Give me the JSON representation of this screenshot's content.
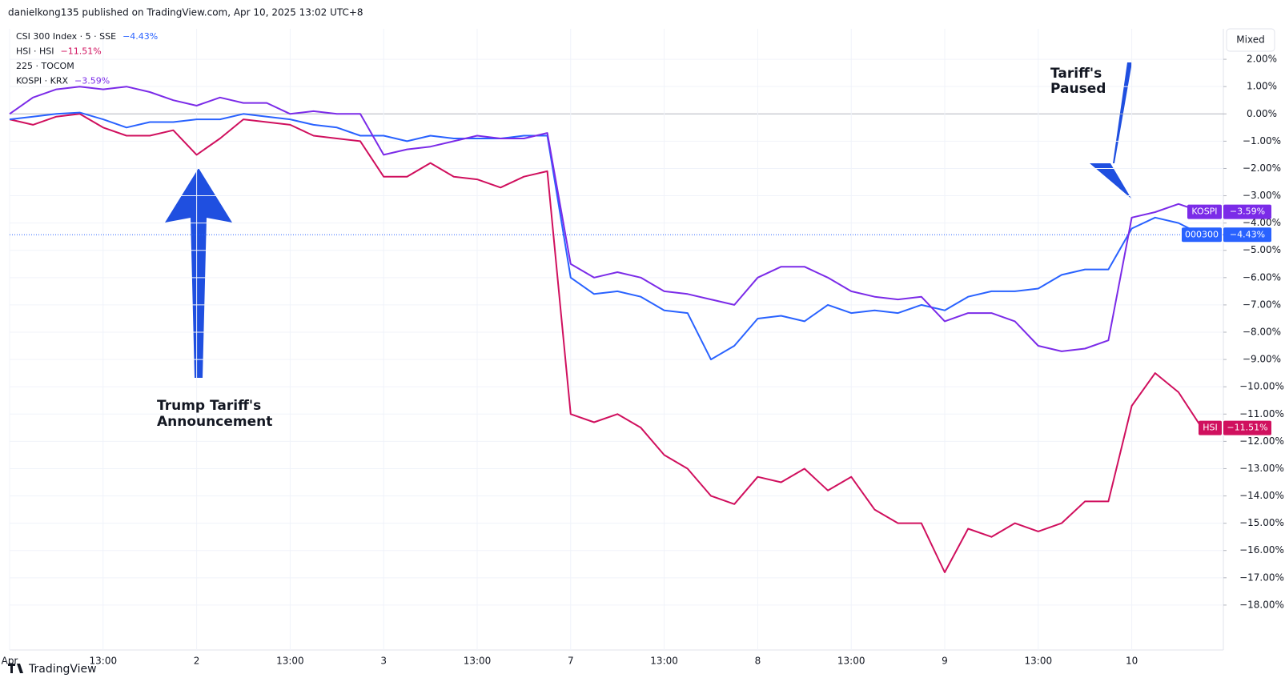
{
  "header": "danielkong135 published on TradingView.com, Apr 10, 2025 13:02 UTC+8",
  "footer": "TradingView",
  "scale_mode": "Mixed",
  "chart_data": {
    "type": "line",
    "categories": [
      "Apr",
      null,
      null,
      null,
      "13:00",
      null,
      null,
      null,
      "2",
      null,
      null,
      null,
      "13:00",
      null,
      null,
      null,
      "3",
      null,
      null,
      null,
      "13:00",
      null,
      null,
      null,
      "7",
      null,
      null,
      null,
      "13:00",
      null,
      null,
      null,
      "8",
      null,
      null,
      null,
      "13:00",
      null,
      null,
      null,
      "9",
      null,
      null,
      null,
      "13:00",
      null,
      null,
      null,
      "10",
      null,
      null,
      null
    ],
    "ylim": [
      -19,
      3
    ],
    "yticks": [
      {
        "value": 2,
        "label": "2.00%"
      },
      {
        "value": 1,
        "label": "1.00%"
      },
      {
        "value": 0,
        "label": "0.00%"
      },
      {
        "value": -1,
        "label": "−1.00%"
      },
      {
        "value": -2,
        "label": "−2.00%"
      },
      {
        "value": -3,
        "label": "−3.00%"
      },
      {
        "value": -4,
        "label": "−4.00%"
      },
      {
        "value": -5,
        "label": "−5.00%"
      },
      {
        "value": -6,
        "label": "−6.00%"
      },
      {
        "value": -7,
        "label": "−7.00%"
      },
      {
        "value": -8,
        "label": "−8.00%"
      },
      {
        "value": -9,
        "label": "−9.00%"
      },
      {
        "value": -10,
        "label": "−10.00%"
      },
      {
        "value": -11,
        "label": "−11.00%"
      },
      {
        "value": -12,
        "label": "−12.00%"
      },
      {
        "value": -13,
        "label": "−13.00%"
      },
      {
        "value": -14,
        "label": "−14.00%"
      },
      {
        "value": -15,
        "label": "−15.00%"
      },
      {
        "value": -16,
        "label": "−16.00%"
      },
      {
        "value": -17,
        "label": "−17.00%"
      },
      {
        "value": -18,
        "label": "−18.00%"
      }
    ],
    "grid": true,
    "series": [
      {
        "name": "CSI 300 Index · 5 · SSE",
        "tag": "000300",
        "color": "#2962ff",
        "values": [
          -0.2,
          -0.1,
          0.0,
          0.05,
          -0.2,
          -0.5,
          -0.3,
          -0.3,
          -0.2,
          -0.2,
          0.0,
          -0.1,
          -0.2,
          -0.4,
          -0.5,
          -0.8,
          -0.8,
          -1.0,
          -0.8,
          -0.9,
          -0.9,
          -0.9,
          -0.8,
          -0.8,
          -6.0,
          -6.6,
          -6.5,
          -6.7,
          -7.2,
          -7.3,
          -9.0,
          -8.5,
          -7.5,
          -7.4,
          -7.6,
          -7.0,
          -7.3,
          -7.2,
          -7.3,
          -7.0,
          -7.2,
          -6.7,
          -6.5,
          -6.5,
          -6.4,
          -5.9,
          -5.7,
          -5.7,
          -4.2,
          -3.8,
          -4.0,
          -4.43
        ],
        "value_labels": [
          null,
          null,
          null,
          null,
          null,
          null,
          null,
          null,
          null,
          null,
          null,
          null,
          null,
          null,
          null,
          null,
          null,
          null,
          null,
          null,
          null,
          null,
          null,
          null,
          null,
          null,
          null,
          null,
          null,
          null,
          null,
          null,
          null,
          null,
          null,
          null,
          null,
          null,
          null,
          null,
          null,
          null,
          null,
          null,
          null,
          null,
          null,
          null,
          null,
          null,
          null,
          "−4.43%"
        ]
      },
      {
        "name": "HSI · HSI",
        "tag": "HSI",
        "color": "#d0105e",
        "values": [
          -0.2,
          -0.4,
          -0.1,
          0.0,
          -0.5,
          -0.8,
          -0.8,
          -0.6,
          -1.5,
          -0.9,
          -0.2,
          -0.3,
          -0.4,
          -0.8,
          -0.9,
          -1.0,
          -2.3,
          -2.3,
          -1.8,
          -2.3,
          -2.4,
          -2.7,
          -2.3,
          -2.1,
          -11.0,
          -11.3,
          -11.0,
          -11.5,
          -12.5,
          -13.0,
          -14.0,
          -14.3,
          -13.3,
          -13.5,
          -13.0,
          -13.8,
          -13.3,
          -14.5,
          -15.0,
          -15.0,
          -16.8,
          -15.2,
          -15.5,
          -15.0,
          -15.3,
          -15.0,
          -14.2,
          -14.2,
          -10.7,
          -9.5,
          -10.2,
          -11.51
        ],
        "value_labels": [
          null,
          null,
          null,
          null,
          null,
          null,
          null,
          null,
          null,
          null,
          null,
          null,
          null,
          null,
          null,
          null,
          null,
          null,
          null,
          null,
          null,
          null,
          null,
          null,
          null,
          null,
          null,
          null,
          null,
          null,
          null,
          null,
          null,
          null,
          null,
          null,
          null,
          null,
          null,
          null,
          null,
          null,
          null,
          null,
          null,
          null,
          null,
          null,
          null,
          null,
          null,
          "−11.51%"
        ]
      },
      {
        "name": "KOSPI · KRX",
        "tag": "KOSPI",
        "color": "#7b2be8",
        "values": [
          0.0,
          0.6,
          0.9,
          1.0,
          0.9,
          1.0,
          0.8,
          0.5,
          0.3,
          0.6,
          0.4,
          0.4,
          0.0,
          0.1,
          0.0,
          0.0,
          -1.5,
          -1.3,
          -1.2,
          -1.0,
          -0.8,
          -0.9,
          -0.9,
          -0.7,
          -5.5,
          -6.0,
          -5.8,
          -6.0,
          -6.5,
          -6.6,
          -6.8,
          -7.0,
          -6.0,
          -5.6,
          -5.6,
          -6.0,
          -6.5,
          -6.7,
          -6.8,
          -6.7,
          -7.6,
          -7.3,
          -7.3,
          -7.6,
          -8.5,
          -8.7,
          -8.6,
          -8.3,
          -3.8,
          -3.6,
          -3.3,
          -3.59
        ],
        "value_labels": [
          null,
          null,
          null,
          null,
          null,
          null,
          null,
          null,
          null,
          null,
          null,
          null,
          null,
          null,
          null,
          null,
          null,
          null,
          null,
          null,
          null,
          null,
          null,
          null,
          null,
          null,
          null,
          null,
          null,
          null,
          null,
          null,
          null,
          null,
          null,
          null,
          null,
          null,
          null,
          null,
          null,
          null,
          null,
          null,
          null,
          null,
          null,
          null,
          null,
          null,
          null,
          "−3.59%"
        ]
      }
    ],
    "extra_legend_entries": [
      "225 · TOCOM"
    ],
    "annotations": [
      {
        "lines": [
          "Trump Tariff's",
          "Announcement"
        ]
      },
      {
        "lines": [
          "Tariff's",
          "Paused"
        ]
      }
    ]
  }
}
